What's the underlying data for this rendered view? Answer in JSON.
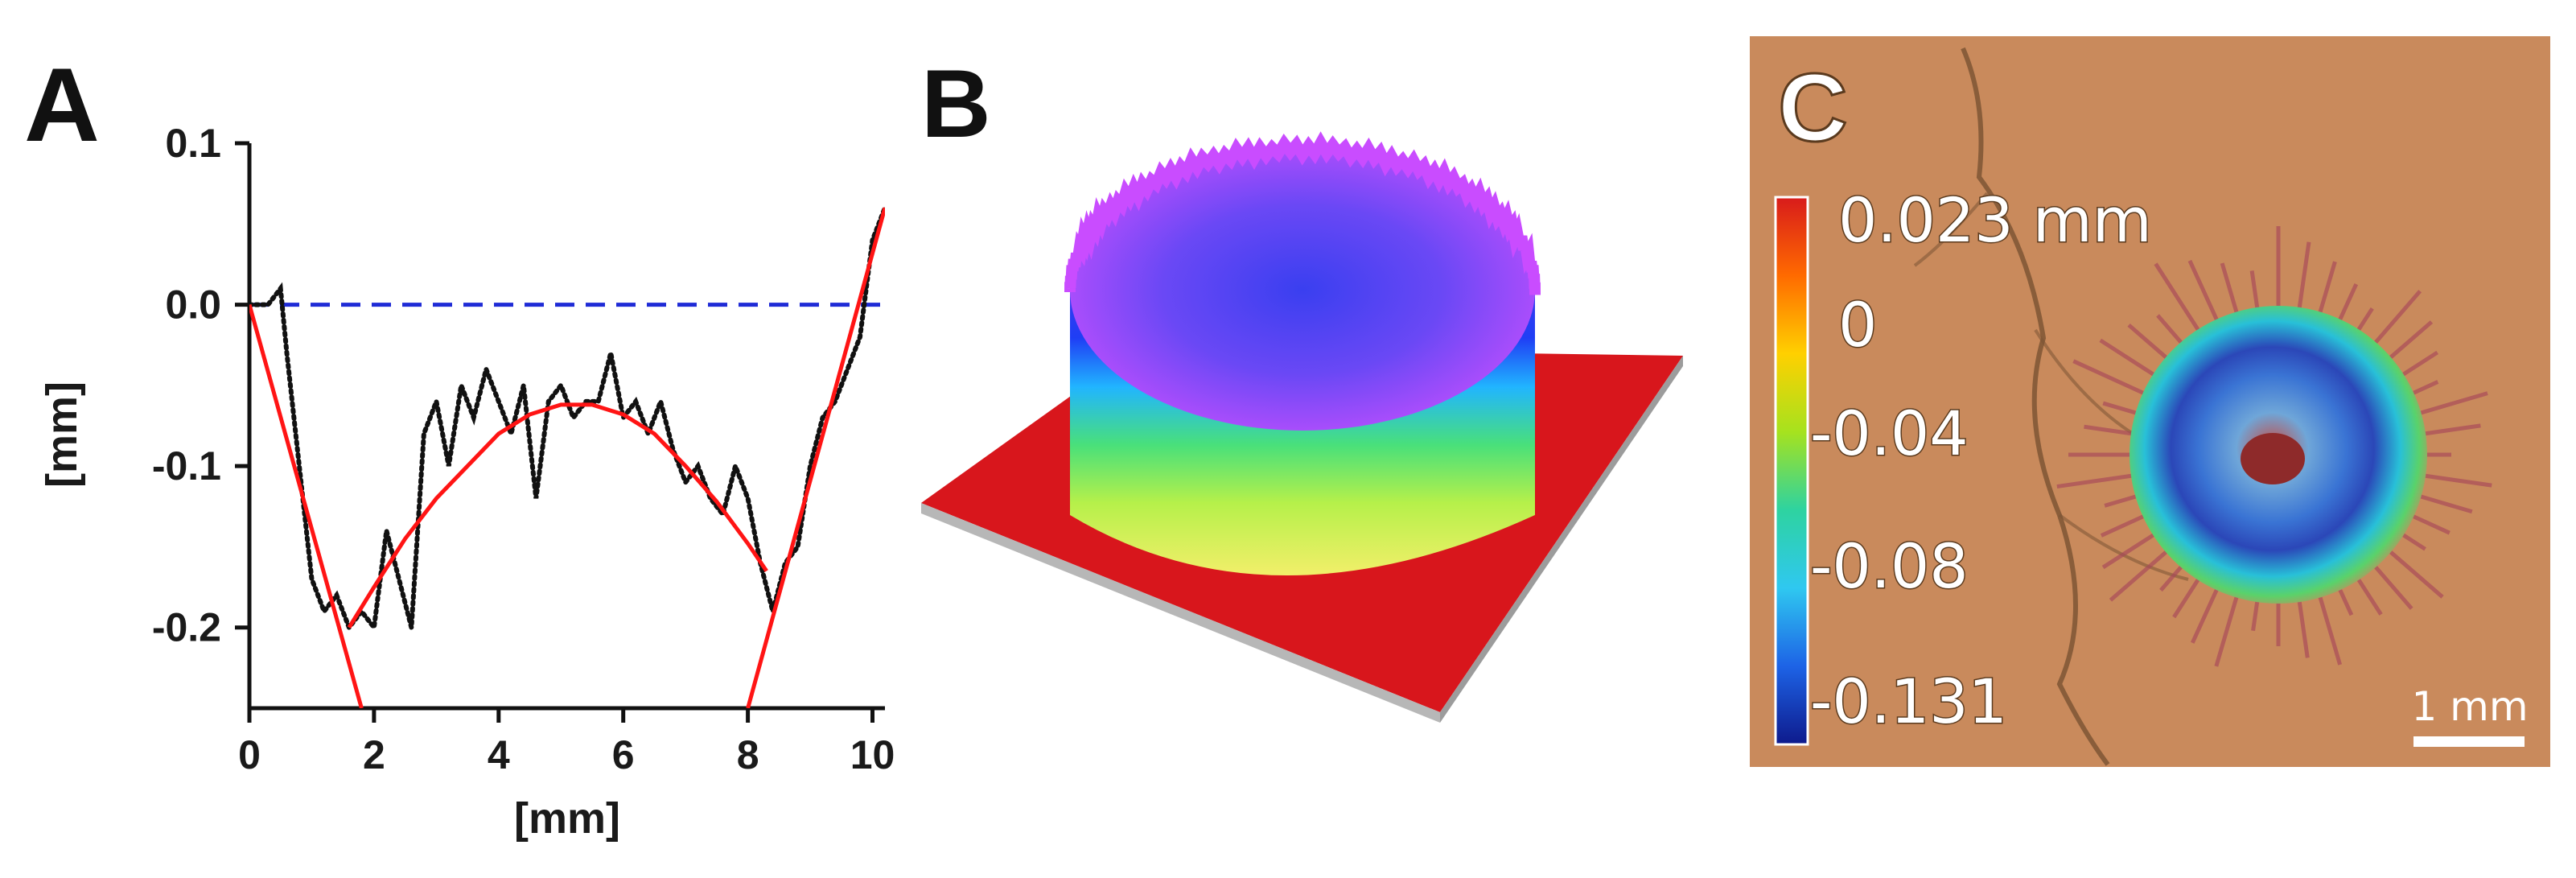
{
  "panels": {
    "a": {
      "letter": "A"
    },
    "b": {
      "letter": "B"
    },
    "c": {
      "letter": "C",
      "colorbar_labels": [
        "0.023 mm",
        "0",
        "-0.04",
        "-0.08",
        "-0.131"
      ],
      "colorbar_colors": [
        "#d81b1b",
        "#ff6a00",
        "#ffd000",
        "#a6e21e",
        "#2ed3a0",
        "#2fc8f0",
        "#1d63e6",
        "#0e1a8c"
      ],
      "scale_bar_label": "1 mm",
      "background_color": "#c98a5c"
    }
  },
  "colors": {
    "profile": "#111111",
    "fit": "#ff1414",
    "zero_line": "#1f2bd6"
  },
  "chart_data": [
    {
      "type": "line",
      "panel": "A",
      "xlabel": "[mm]",
      "ylabel": "[mm]",
      "xlim": [
        0,
        10.2
      ],
      "ylim": [
        -0.25,
        0.1
      ],
      "x_ticks": [
        0,
        2,
        4,
        6,
        8,
        10
      ],
      "x_tick_labels": [
        "0",
        "2",
        "4",
        "6",
        "8",
        "10"
      ],
      "y_ticks": [
        0.1,
        0.0,
        -0.1,
        -0.2
      ],
      "y_tick_labels": [
        "0.1",
        "0.0",
        "-0.1",
        "-0.2"
      ],
      "reference_line": {
        "y": 0.0,
        "style": "dashed"
      },
      "series": [
        {
          "style": "dotted",
          "x": [
            0.0,
            0.3,
            0.5,
            0.6,
            0.8,
            1.0,
            1.2,
            1.4,
            1.6,
            1.8,
            2.0,
            2.2,
            2.4,
            2.6,
            2.8,
            3.0,
            3.2,
            3.4,
            3.6,
            3.8,
            4.0,
            4.2,
            4.4,
            4.6,
            4.8,
            5.0,
            5.2,
            5.4,
            5.6,
            5.8,
            6.0,
            6.2,
            6.4,
            6.6,
            6.8,
            7.0,
            7.2,
            7.4,
            7.6,
            7.8,
            8.0,
            8.2,
            8.4,
            8.6,
            8.8,
            9.0,
            9.2,
            9.4,
            9.6,
            9.8,
            10.0,
            10.2
          ],
          "y": [
            0.0,
            0.0,
            0.01,
            -0.03,
            -0.1,
            -0.17,
            -0.19,
            -0.18,
            -0.2,
            -0.19,
            -0.2,
            -0.14,
            -0.17,
            -0.2,
            -0.08,
            -0.06,
            -0.1,
            -0.05,
            -0.07,
            -0.04,
            -0.06,
            -0.08,
            -0.05,
            -0.12,
            -0.06,
            -0.05,
            -0.07,
            -0.06,
            -0.06,
            -0.03,
            -0.07,
            -0.06,
            -0.08,
            -0.06,
            -0.09,
            -0.11,
            -0.1,
            -0.12,
            -0.13,
            -0.1,
            -0.12,
            -0.16,
            -0.19,
            -0.16,
            -0.15,
            -0.1,
            -0.07,
            -0.06,
            -0.04,
            -0.02,
            0.04,
            0.06
          ]
        },
        {
          "style": "solid-left-line",
          "x": [
            0.0,
            1.8
          ],
          "y": [
            0.0,
            -0.25
          ]
        },
        {
          "style": "solid-parabola",
          "x": [
            1.6,
            2.0,
            2.5,
            3.0,
            3.5,
            4.0,
            4.5,
            5.0,
            5.5,
            6.0,
            6.5,
            7.0,
            7.5,
            8.0,
            8.3
          ],
          "y": [
            -0.2,
            -0.175,
            -0.145,
            -0.12,
            -0.1,
            -0.08,
            -0.068,
            -0.062,
            -0.062,
            -0.068,
            -0.08,
            -0.1,
            -0.122,
            -0.148,
            -0.165
          ]
        },
        {
          "style": "solid-right-line",
          "x": [
            8.0,
            10.2
          ],
          "y": [
            -0.25,
            0.06
          ]
        }
      ]
    }
  ]
}
